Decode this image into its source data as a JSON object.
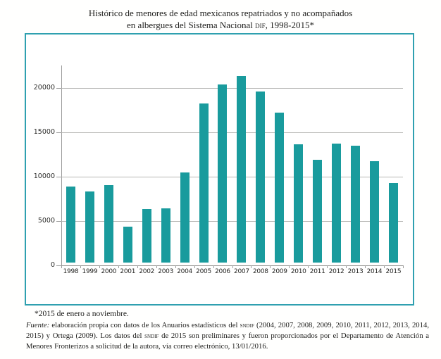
{
  "title": {
    "line1": "Histórico de menores de edad mexicanos repatriados y no acompañados",
    "line2_segments": [
      {
        "t": "en albergues del Sistema Nacional "
      },
      {
        "t": "dif",
        "style": "sc"
      },
      {
        "t": ", 1998-2015*"
      }
    ]
  },
  "chart_data": {
    "type": "bar",
    "title": "Histórico de menores de edad mexicanos repatriados y no acompañados en albergues del Sistema Nacional DIF, 1998-2015*",
    "categories": [
      "1998",
      "1999",
      "2000",
      "2001",
      "2002",
      "2003",
      "2004",
      "2005",
      "2006",
      "2007",
      "2008",
      "2009",
      "2010",
      "2011",
      "2012",
      "2013",
      "2014",
      "2015"
    ],
    "values": [
      8550,
      8000,
      8750,
      4050,
      6050,
      6100,
      10150,
      17900,
      20050,
      21050,
      19300,
      16900,
      13350,
      11550,
      13400,
      13200,
      11450,
      8950
    ],
    "xlabel": "",
    "ylabel": "",
    "yticks": [
      0,
      5000,
      10000,
      15000,
      20000
    ],
    "ylim": [
      0,
      21500
    ],
    "grid": true,
    "legend": false,
    "bar_color": "#199b9d",
    "frame_color": "#2fa0b0",
    "gridline_color": "#b6b6b4"
  },
  "footnotes": {
    "period": "*2015 de enero a noviembre.",
    "source_segments": [
      {
        "t": "Fuente:",
        "style": "it"
      },
      {
        "t": " elaboración propia con datos de los Anuarios estadísticos del "
      },
      {
        "t": "sndif",
        "style": "sc"
      },
      {
        "t": " (2004, 2007, 2008, 2009, 2010, 2011, 2012, 2013, 2014, 2015) y Ortega (2009). Los datos del "
      },
      {
        "t": "sndif",
        "style": "sc"
      },
      {
        "t": " de 2015 son preliminares y fueron proporcionados por el Departamento de Atención a Menores Fronterizos a solicitud de la autora, vía correo electrónico, 13/01/2016."
      }
    ]
  }
}
